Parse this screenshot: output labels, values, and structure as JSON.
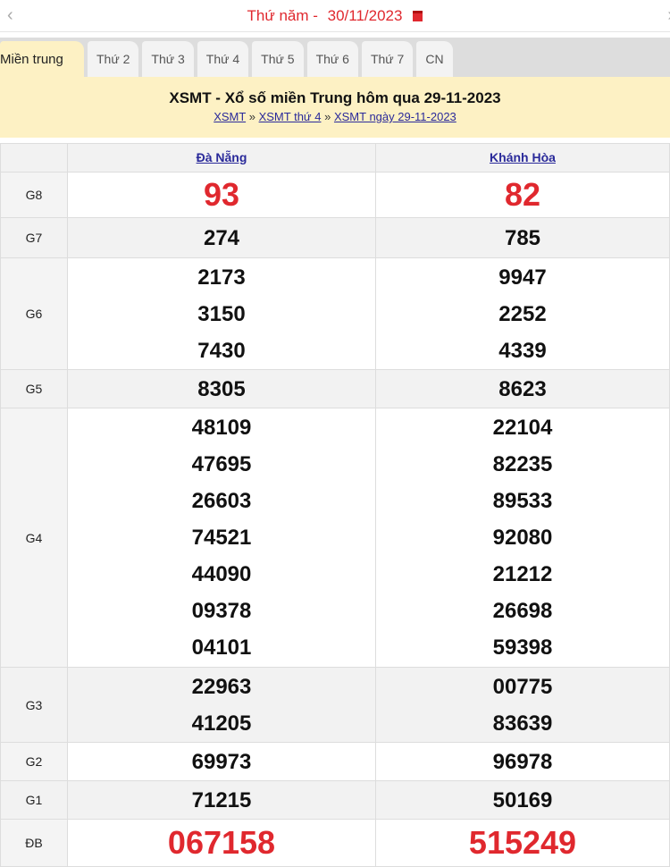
{
  "date_bar": {
    "label": "Thứ năm - ",
    "date": "30/11/2023",
    "prev": "‹",
    "next": "›"
  },
  "tabs": [
    "Miền trung",
    "Thứ 2",
    "Thứ 3",
    "Thứ 4",
    "Thứ 5",
    "Thứ 6",
    "Thứ 7",
    "CN"
  ],
  "active_tab": "Miền trung",
  "banner": {
    "title": "XSMT - Xổ số miền Trung hôm qua 29-11-2023",
    "crumbs": [
      "XSMT",
      "XSMT thứ 4",
      "XSMT ngày 29-11-2023"
    ],
    "sep": "»"
  },
  "table": {
    "provinces": [
      "Đà Nẵng",
      "Khánh Hòa"
    ],
    "rows": [
      {
        "label": "G8",
        "cols": [
          [
            "93"
          ],
          [
            "82"
          ]
        ]
      },
      {
        "label": "G7",
        "cols": [
          [
            "274"
          ],
          [
            "785"
          ]
        ]
      },
      {
        "label": "G6",
        "cols": [
          [
            "2173",
            "3150",
            "7430"
          ],
          [
            "9947",
            "2252",
            "4339"
          ]
        ]
      },
      {
        "label": "G5",
        "cols": [
          [
            "8305"
          ],
          [
            "8623"
          ]
        ]
      },
      {
        "label": "G4",
        "cols": [
          [
            "48109",
            "47695",
            "26603",
            "74521",
            "44090",
            "09378",
            "04101"
          ],
          [
            "22104",
            "82235",
            "89533",
            "92080",
            "21212",
            "26698",
            "59398"
          ]
        ]
      },
      {
        "label": "G3",
        "cols": [
          [
            "22963",
            "41205"
          ],
          [
            "00775",
            "83639"
          ]
        ]
      },
      {
        "label": "G2",
        "cols": [
          [
            "69973"
          ],
          [
            "96978"
          ]
        ]
      },
      {
        "label": "G1",
        "cols": [
          [
            "71215"
          ],
          [
            "50169"
          ]
        ]
      },
      {
        "label": "ĐB",
        "cols": [
          [
            "067158"
          ],
          [
            "515249"
          ]
        ]
      }
    ]
  },
  "colors": {
    "accent": "#e0282e",
    "banner": "#fdf1c4",
    "link": "#2a2a9a"
  }
}
